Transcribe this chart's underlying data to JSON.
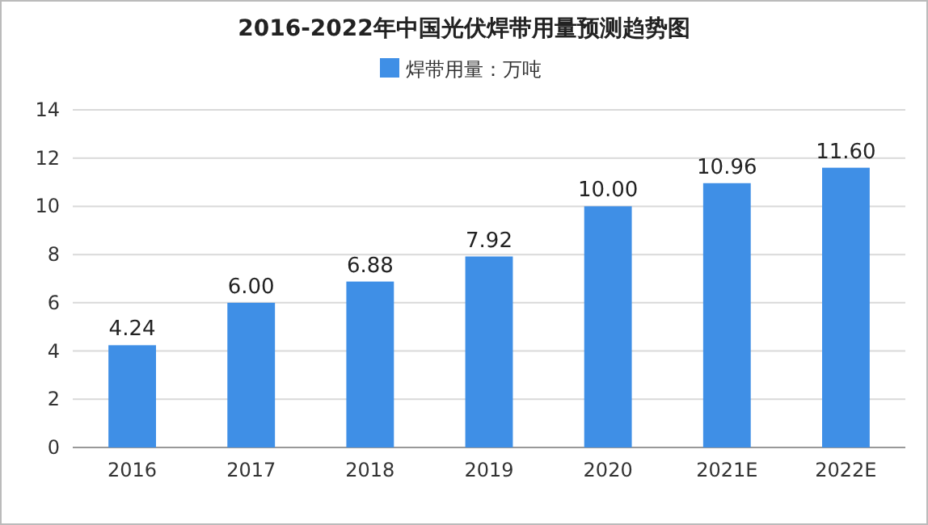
{
  "chart_data": {
    "type": "bar",
    "title": "2016-2022年中国光伏焊带用量预测趋势图",
    "categories": [
      "2016",
      "2017",
      "2018",
      "2019",
      "2020",
      "2021E",
      "2022E"
    ],
    "series": [
      {
        "name": "焊带用量：万吨",
        "color": "#3f8fe6",
        "values": [
          4.24,
          6.0,
          6.88,
          7.92,
          10.0,
          10.96,
          11.6
        ]
      }
    ],
    "value_labels": [
      "4.24",
      "6.00",
      "6.88",
      "7.92",
      "10.00",
      "10.96",
      "11.60"
    ],
    "ylim": [
      0,
      14
    ],
    "yticks": [
      0,
      2,
      4,
      6,
      8,
      10,
      12,
      14
    ],
    "grid": "y",
    "legend": "top"
  }
}
